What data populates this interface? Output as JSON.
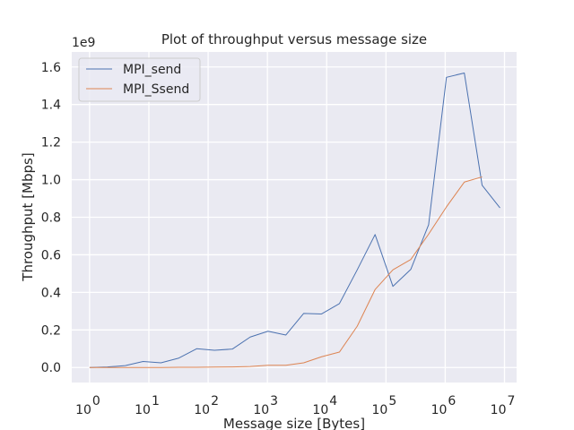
{
  "chart_data": {
    "type": "line",
    "title": "Plot of throughput versus message size",
    "xlabel": "Message size [Bytes]",
    "ylabel": "Throughput [Mbps]",
    "x_scale": "log",
    "y_offset_label": "1e9",
    "xlim": [
      0.5,
      16000000
    ],
    "ylim": [
      -80000000,
      1680000000
    ],
    "x_ticks": [
      {
        "value": 1,
        "base": "10",
        "exp": "0"
      },
      {
        "value": 10,
        "base": "10",
        "exp": "1"
      },
      {
        "value": 100,
        "base": "10",
        "exp": "2"
      },
      {
        "value": 1000,
        "base": "10",
        "exp": "3"
      },
      {
        "value": 10000,
        "base": "10",
        "exp": "4"
      },
      {
        "value": 100000,
        "base": "10",
        "exp": "5"
      },
      {
        "value": 1000000,
        "base": "10",
        "exp": "6"
      },
      {
        "value": 10000000,
        "base": "10",
        "exp": "7"
      }
    ],
    "y_ticks": [
      {
        "value": 0,
        "label": "0.0"
      },
      {
        "value": 200000000,
        "label": "0.2"
      },
      {
        "value": 400000000,
        "label": "0.4"
      },
      {
        "value": 600000000,
        "label": "0.6"
      },
      {
        "value": 800000000,
        "label": "0.8"
      },
      {
        "value": 1000000000,
        "label": "1.0"
      },
      {
        "value": 1200000000,
        "label": "1.2"
      },
      {
        "value": 1400000000,
        "label": "1.4"
      },
      {
        "value": 1600000000,
        "label": "1.6"
      }
    ],
    "grid": true,
    "legend_position": "top-left",
    "background_color": "#eaeaf2",
    "grid_color": "#ffffff",
    "series": [
      {
        "name": "MPI_send",
        "color": "#4c72b0",
        "x": [
          1,
          2,
          4,
          8,
          16,
          32,
          64,
          128,
          256,
          512,
          1024,
          2048,
          4096,
          8192,
          16384,
          32768,
          65536,
          131072,
          262144,
          524288,
          1048576,
          2097152,
          4194304,
          8388608
        ],
        "y": [
          0,
          3000000,
          10000000,
          32000000,
          25000000,
          50000000,
          100000000,
          92000000,
          98000000,
          162000000,
          193000000,
          173000000,
          288000000,
          285000000,
          340000000,
          520000000,
          708000000,
          432000000,
          522000000,
          760000000,
          1545000000,
          1568000000,
          970000000,
          850000000
        ]
      },
      {
        "name": "MPI_Ssend",
        "color": "#dd8452",
        "x": [
          1,
          2,
          4,
          8,
          16,
          32,
          64,
          128,
          256,
          512,
          1024,
          2048,
          4096,
          8192,
          16384,
          32768,
          65536,
          131072,
          262144,
          524288,
          1048576,
          2097152,
          4194304
        ],
        "y": [
          0,
          0,
          0,
          0,
          0,
          1000000,
          1000000,
          2000000,
          3000000,
          5000000,
          12000000,
          12000000,
          25000000,
          57000000,
          82000000,
          220000000,
          415000000,
          520000000,
          575000000,
          710000000,
          855000000,
          987000000,
          1015000000
        ]
      }
    ]
  }
}
